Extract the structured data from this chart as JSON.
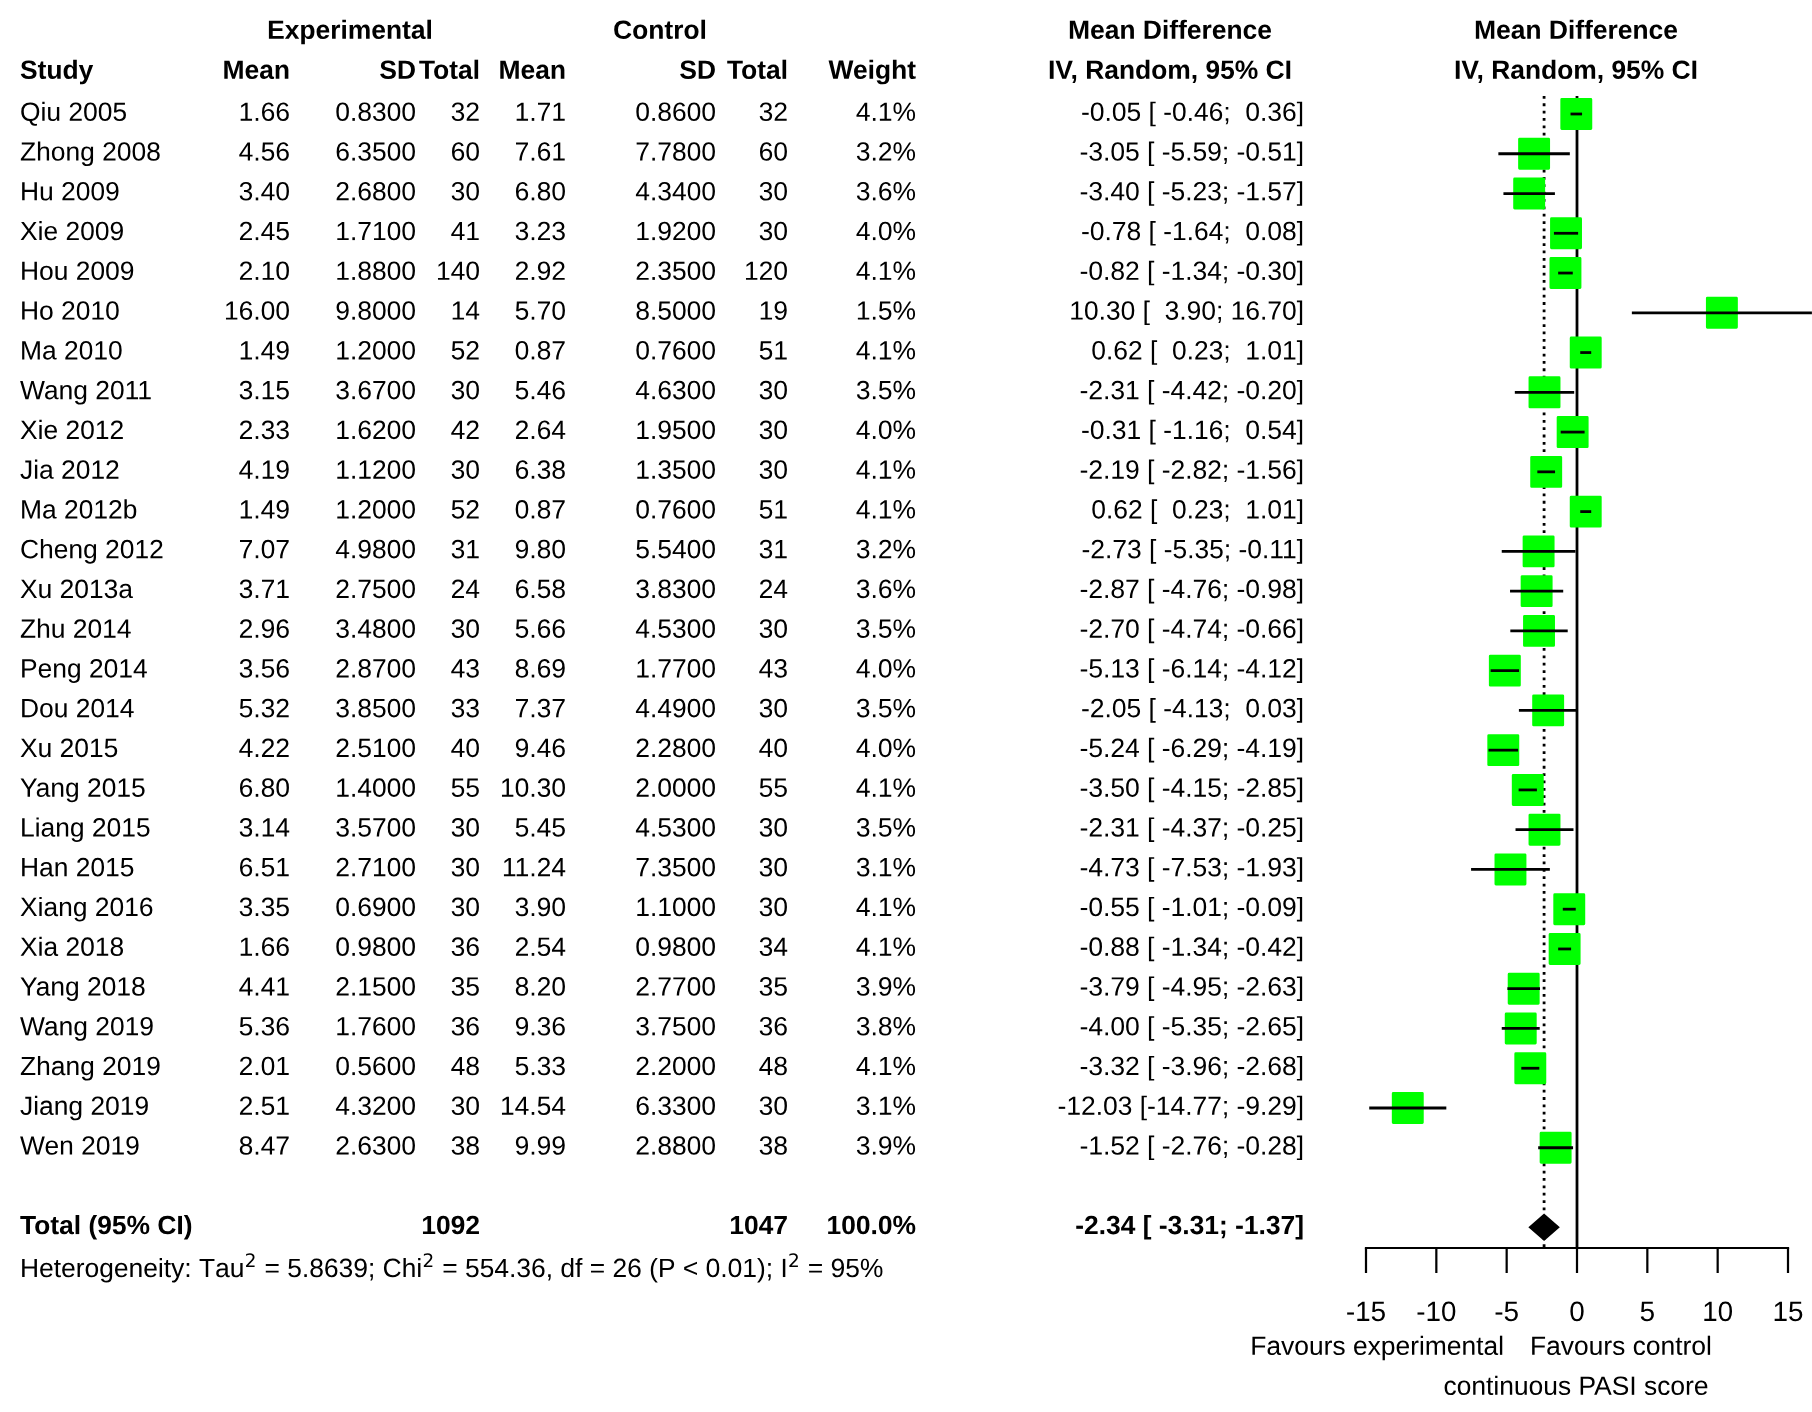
{
  "chart_data": [
    {
      "type": "other",
      "annotations": [
        "Experimental",
        "Control",
        "Mean Difference",
        "Study",
        "Mean",
        "SD",
        "Total",
        "Mean",
        "SD",
        "Total",
        "Weight",
        "IV, Random, 95% CI",
        "Qiu 2005",
        "1.66",
        "0.8300",
        "32",
        "1.71",
        "0.8600",
        "32",
        "4.1%",
        "-0.05 [ -0.46;  0.36]",
        "Zhong 2008",
        "4.56",
        "6.3500",
        "60",
        "7.61",
        "7.7800",
        "60",
        "3.2%",
        "-3.05 [ -5.59; -0.51]",
        "Hu 2009",
        "3.40",
        "2.6800",
        "30",
        "6.80",
        "4.3400",
        "30",
        "3.6%",
        "-3.40 [ -5.23; -1.57]",
        "Xie 2009",
        "2.45",
        "1.7100",
        "41",
        "3.23",
        "1.9200",
        "30",
        "4.0%",
        "-0.78 [ -1.64;  0.08]",
        "Hou 2009",
        "2.10",
        "1.8800",
        "140",
        "2.92",
        "2.3500",
        "120",
        "4.1%",
        "-0.82 [ -1.34; -0.30]",
        "Ho 2010",
        "16.00",
        "9.8000",
        "14",
        "5.70",
        "8.5000",
        "19",
        "1.5%",
        "10.30 [  3.90; 16.70]",
        "Ma 2010",
        "1.49",
        "1.2000",
        "52",
        "0.87",
        "0.7600",
        "51",
        "4.1%",
        "0.62 [  0.23;  1.01]",
        "Wang 2011",
        "3.15",
        "3.6700",
        "30",
        "5.46",
        "4.6300",
        "30",
        "3.5%",
        "-2.31 [ -4.42; -0.20]",
        "Xie 2012",
        "2.33",
        "1.6200",
        "42",
        "2.64",
        "1.9500",
        "30",
        "4.0%",
        "-0.31 [ -1.16;  0.54]",
        "Jia 2012",
        "4.19",
        "1.1200",
        "30",
        "6.38",
        "1.3500",
        "30",
        "4.1%",
        "-2.19 [ -2.82; -1.56]",
        "Ma 2012b",
        "1.49",
        "1.2000",
        "52",
        "0.87",
        "0.7600",
        "51",
        "4.1%",
        "0.62 [  0.23;  1.01]",
        "Cheng 2012",
        "7.07",
        "4.9800",
        "31",
        "9.80",
        "5.5400",
        "31",
        "3.2%",
        "-2.73 [ -5.35; -0.11]",
        "Xu 2013a",
        "3.71",
        "2.7500",
        "24",
        "6.58",
        "3.8300",
        "24",
        "3.6%",
        "-2.87 [ -4.76; -0.98]",
        "Zhu 2014",
        "2.96",
        "3.4800",
        "30",
        "5.66",
        "4.5300",
        "30",
        "3.5%",
        "-2.70 [ -4.74; -0.66]",
        "Peng 2014",
        "3.56",
        "2.8700",
        "43",
        "8.69",
        "1.7700",
        "43",
        "4.0%",
        "-5.13 [ -6.14; -4.12]",
        "Dou 2014",
        "5.32",
        "3.8500",
        "33",
        "7.37",
        "4.4900",
        "30",
        "3.5%",
        "-2.05 [ -4.13;  0.03]",
        "Xu 2015",
        "4.22",
        "2.5100",
        "40",
        "9.46",
        "2.2800",
        "40",
        "4.0%",
        "-5.24 [ -6.29; -4.19]",
        "Yang 2015",
        "6.80",
        "1.4000",
        "55",
        "10.30",
        "2.0000",
        "55",
        "4.1%",
        "-3.50 [ -4.15; -2.85]",
        "Liang 2015",
        "3.14",
        "3.5700",
        "30",
        "5.45",
        "4.5300",
        "30",
        "3.5%",
        "-2.31 [ -4.37; -0.25]",
        "Han 2015",
        "6.51",
        "2.7100",
        "30",
        "11.24",
        "7.3500",
        "30",
        "3.1%",
        "-4.73 [ -7.53; -1.93]",
        "Xiang 2016",
        "3.35",
        "0.6900",
        "30",
        "3.90",
        "1.1000",
        "30",
        "4.1%",
        "-0.55 [ -1.01; -0.09]",
        "Xia 2018",
        "1.66",
        "0.9800",
        "36",
        "2.54",
        "0.9800",
        "34",
        "4.1%",
        "-0.88 [ -1.34; -0.42]",
        "Yang 2018",
        "4.41",
        "2.1500",
        "35",
        "8.20",
        "2.7700",
        "35",
        "3.9%",
        "-3.79 [ -4.95; -2.63]",
        "Wang 2019",
        "5.36",
        "1.7600",
        "36",
        "9.36",
        "3.7500",
        "36",
        "3.8%",
        "-4.00 [ -5.35; -2.65]",
        "Zhang 2019",
        "2.01",
        "0.5600",
        "48",
        "5.33",
        "2.2000",
        "48",
        "4.1%",
        "-3.32 [ -3.96; -2.68]",
        "Jiang 2019",
        "2.51",
        "4.3200",
        "30",
        "14.54",
        "6.3300",
        "30",
        "3.1%",
        "-12.03 [-14.77; -9.29]",
        "Wen 2019",
        "8.47",
        "2.6300",
        "38",
        "9.99",
        "2.8800",
        "38",
        "3.9%",
        "-1.52 [ -2.76; -0.28]",
        "Total (95% CI)",
        "1092",
        "1047",
        "100.0%",
        "-2.34 [ -3.31; -1.37]",
        "Heterogeneity: Tau$^{2}$ = 5.8639; Chi$^{2}$ = 554.36, df = 26 (P < 0.01); I$^{2}$ = 95%"
      ]
    },
    {
      "type": "scatter",
      "orientation": "horizontal",
      "title": "Mean Difference",
      "subtitle": "IV, Random, 95% CI",
      "xlabel": "continuous PASI score",
      "annotations": [
        "Favours experimental",
        "Favours control"
      ],
      "categories": [
        null,
        null,
        null,
        null,
        null,
        null,
        null,
        null,
        null,
        null,
        null,
        null,
        null,
        null,
        null,
        null,
        null,
        null,
        null,
        null,
        null,
        null,
        null,
        null,
        null,
        null,
        null,
        null,
        null
      ],
      "series": [
        {
          "color": "#00ff00",
          "marker": "square",
          "values": [
            -0.05,
            -3.05,
            -3.4,
            -0.78,
            -0.82,
            10.3,
            0.62,
            -2.31,
            -0.31,
            -2.19,
            0.62,
            -2.73,
            -2.87,
            -2.7,
            -5.13,
            -2.05,
            -5.24,
            -3.5,
            -2.31,
            -4.73,
            -0.55,
            -0.88,
            -3.79,
            -4.0,
            -3.32,
            -12.03,
            -1.52,
            null,
            null
          ],
          "errors": [
            [
              -0.46,
              0.36
            ],
            [
              -5.59,
              -0.51
            ],
            [
              -5.23,
              -1.57
            ],
            [
              -1.64,
              0.08
            ],
            [
              -1.34,
              -0.3
            ],
            [
              3.9,
              16.7
            ],
            [
              0.23,
              1.01
            ],
            [
              -4.42,
              -0.2
            ],
            [
              -1.16,
              0.54
            ],
            [
              -2.82,
              -1.56
            ],
            [
              0.23,
              1.01
            ],
            [
              -5.35,
              -0.11
            ],
            [
              -4.76,
              -0.98
            ],
            [
              -4.74,
              -0.66
            ],
            [
              -6.14,
              -4.12
            ],
            [
              -4.13,
              0.03
            ],
            [
              -6.29,
              -4.19
            ],
            [
              -4.15,
              -2.85
            ],
            [
              -4.37,
              -0.25
            ],
            [
              -7.53,
              -1.93
            ],
            [
              -1.01,
              -0.09
            ],
            [
              -1.34,
              -0.42
            ],
            [
              -4.95,
              -2.63
            ],
            [
              -5.35,
              -2.65
            ],
            [
              -3.96,
              -2.68
            ],
            [
              -14.77,
              -9.29
            ],
            [
              -2.76,
              -0.28
            ],
            null,
            null
          ]
        },
        {
          "color": "#000000",
          "marker": "diamond",
          "values": [
            null,
            null,
            null,
            null,
            null,
            null,
            null,
            null,
            null,
            null,
            null,
            null,
            null,
            null,
            null,
            null,
            null,
            null,
            null,
            null,
            null,
            null,
            null,
            null,
            null,
            null,
            null,
            null,
            -2.34
          ],
          "errors": [
            null,
            null,
            null,
            null,
            null,
            null,
            null,
            null,
            null,
            null,
            null,
            null,
            null,
            null,
            null,
            null,
            null,
            null,
            null,
            null,
            null,
            null,
            null,
            null,
            null,
            null,
            null,
            null,
            [
              -3.31,
              -1.37
            ]
          ]
        }
      ],
      "xlim": [
        -15,
        15
      ],
      "xticks": [
        -15,
        -10,
        -5,
        0,
        5,
        10,
        15
      ],
      "ref_lines": [
        {
          "axis": "x",
          "value": 0,
          "color": "#000000",
          "line_style": "solid"
        },
        {
          "axis": "x",
          "value": -2.34,
          "color": "#000000",
          "line_style": "dotted"
        }
      ],
      "tick_labels": "x"
    }
  ]
}
